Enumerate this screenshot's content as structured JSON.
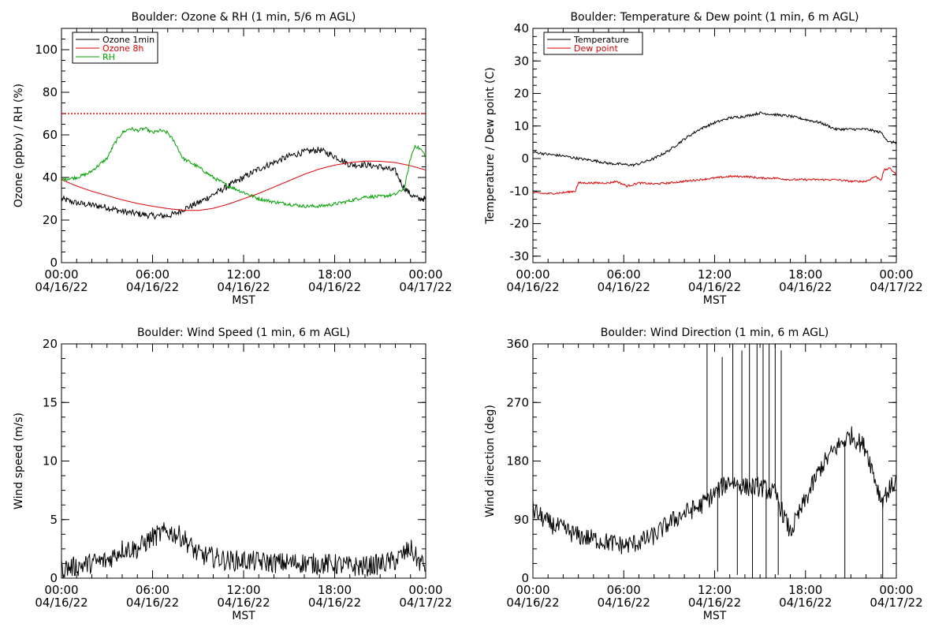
{
  "chart_data": [
    {
      "type": "line",
      "title": "Boulder: Ozone & RH (1 min, 5/6 m AGL)",
      "ylabel": "Ozone (ppbv) / RH (%)",
      "xlabel": "MST",
      "xlim": [
        "04/16/22 00:00",
        "04/17/22 00:00"
      ],
      "ylim": [
        0,
        110
      ],
      "yticks": [
        0,
        20,
        40,
        60,
        80,
        100
      ],
      "xtick_labels": [
        [
          "00:00",
          "04/16/22"
        ],
        [
          "06:00",
          "04/16/22"
        ],
        [
          "12:00",
          "04/16/22"
        ],
        [
          "18:00",
          "04/16/22"
        ],
        [
          "00:00",
          "04/17/22"
        ]
      ],
      "reference_line": {
        "y": 70,
        "style": "dotted",
        "color": "#dd0000"
      },
      "legend": {
        "position": "top-left"
      },
      "series": [
        {
          "name": "Ozone 1min",
          "color": "#000000",
          "noise": 1.5,
          "points": [
            [
              0,
              30
            ],
            [
              1,
              28
            ],
            [
              2,
              27
            ],
            [
              3,
              26
            ],
            [
              4,
              24
            ],
            [
              5,
              23
            ],
            [
              6,
              22
            ],
            [
              7,
              22
            ],
            [
              7.5,
              23
            ],
            [
              8,
              25
            ],
            [
              9,
              28
            ],
            [
              10,
              32
            ],
            [
              11,
              36
            ],
            [
              12,
              40
            ],
            [
              13,
              44
            ],
            [
              14,
              47
            ],
            [
              15,
              50
            ],
            [
              16,
              52
            ],
            [
              17,
              53
            ],
            [
              18,
              50
            ],
            [
              19,
              46
            ],
            [
              20,
              46
            ],
            [
              21,
              45
            ],
            [
              22,
              43
            ],
            [
              22.5,
              36
            ],
            [
              23,
              32
            ],
            [
              23.5,
              30
            ],
            [
              24,
              30
            ]
          ]
        },
        {
          "name": "Ozone 8h",
          "color": "#dd0000",
          "noise": 0,
          "points": [
            [
              0,
              39
            ],
            [
              1,
              36
            ],
            [
              2,
              33.5
            ],
            [
              3,
              31.5
            ],
            [
              4,
              29.5
            ],
            [
              5,
              27.8
            ],
            [
              6,
              26.5
            ],
            [
              7,
              25.4
            ],
            [
              8,
              24.6
            ],
            [
              9,
              24.5
            ],
            [
              10,
              25.5
            ],
            [
              11,
              27.5
            ],
            [
              12,
              30
            ],
            [
              13,
              32.5
            ],
            [
              14,
              35.5
            ],
            [
              15,
              38.5
            ],
            [
              16,
              41.5
            ],
            [
              17,
              44
            ],
            [
              18,
              45.8
            ],
            [
              19,
              47
            ],
            [
              20,
              47.7
            ],
            [
              21,
              47.6
            ],
            [
              22,
              47
            ],
            [
              23,
              45.5
            ],
            [
              24,
              43.5
            ]
          ]
        },
        {
          "name": "RH",
          "color": "#00a000",
          "noise": 0.8,
          "points": [
            [
              0,
              39
            ],
            [
              1,
              40
            ],
            [
              1.8,
              42
            ],
            [
              2.5,
              46
            ],
            [
              3,
              49
            ],
            [
              3.5,
              56
            ],
            [
              4,
              61
            ],
            [
              4.5,
              63
            ],
            [
              5,
              62
            ],
            [
              5.5,
              63
            ],
            [
              6,
              61
            ],
            [
              6.5,
              62
            ],
            [
              7,
              61
            ],
            [
              7.5,
              56
            ],
            [
              8,
              49
            ],
            [
              9,
              45
            ],
            [
              10,
              40
            ],
            [
              11,
              36
            ],
            [
              12,
              33
            ],
            [
              13,
              30
            ],
            [
              14,
              28.5
            ],
            [
              15,
              27.5
            ],
            [
              16,
              26.5
            ],
            [
              17,
              26.5
            ],
            [
              18,
              27.5
            ],
            [
              19,
              29
            ],
            [
              20,
              31
            ],
            [
              21,
              31
            ],
            [
              22,
              32
            ],
            [
              22.6,
              35
            ],
            [
              23,
              49
            ],
            [
              23.3,
              55
            ],
            [
              23.7,
              53
            ],
            [
              24,
              50
            ]
          ]
        }
      ]
    },
    {
      "type": "line",
      "title": "Boulder: Temperature & Dew point (1 min, 6 m AGL)",
      "ylabel": "Temperature / Dew point (C)",
      "xlabel": "MST",
      "xlim": [
        "04/16/22 00:00",
        "04/17/22 00:00"
      ],
      "ylim": [
        -32,
        40
      ],
      "yticks": [
        -30,
        -20,
        -10,
        0,
        10,
        20,
        30,
        40
      ],
      "xtick_labels": [
        [
          "00:00",
          "04/16/22"
        ],
        [
          "06:00",
          "04/16/22"
        ],
        [
          "12:00",
          "04/16/22"
        ],
        [
          "18:00",
          "04/16/22"
        ],
        [
          "00:00",
          "04/17/22"
        ]
      ],
      "legend": {
        "position": "top-left"
      },
      "series": [
        {
          "name": "Temperature",
          "color": "#000000",
          "noise": 0.4,
          "points": [
            [
              0,
              2
            ],
            [
              1,
              1.3
            ],
            [
              2,
              0.8
            ],
            [
              3,
              0
            ],
            [
              4,
              -0.6
            ],
            [
              5,
              -1.5
            ],
            [
              6,
              -1.8
            ],
            [
              6.6,
              -2
            ],
            [
              7,
              -1.6
            ],
            [
              8,
              0
            ],
            [
              9,
              2.5
            ],
            [
              10,
              6
            ],
            [
              11,
              9
            ],
            [
              12,
              11
            ],
            [
              13,
              12.5
            ],
            [
              14,
              13
            ],
            [
              15,
              14
            ],
            [
              16,
              13.5
            ],
            [
              17,
              13
            ],
            [
              18,
              12
            ],
            [
              19,
              11
            ],
            [
              20,
              9
            ],
            [
              21,
              9
            ],
            [
              22,
              9
            ],
            [
              23,
              8
            ],
            [
              23.5,
              5
            ],
            [
              24,
              5
            ]
          ]
        },
        {
          "name": "Dew point",
          "color": "#dd0000",
          "noise": 0.3,
          "points": [
            [
              0,
              -10.5
            ],
            [
              1,
              -10.8
            ],
            [
              2,
              -10.5
            ],
            [
              2.8,
              -10
            ],
            [
              3,
              -7.5
            ],
            [
              4,
              -7.5
            ],
            [
              5,
              -7.5
            ],
            [
              5.5,
              -7
            ],
            [
              6,
              -8
            ],
            [
              6.2,
              -8.5
            ],
            [
              7,
              -7.5
            ],
            [
              8,
              -7.8
            ],
            [
              9,
              -7.5
            ],
            [
              10,
              -7
            ],
            [
              11,
              -6.5
            ],
            [
              12,
              -6
            ],
            [
              13,
              -5.5
            ],
            [
              14,
              -5.5
            ],
            [
              15,
              -6
            ],
            [
              16,
              -6
            ],
            [
              17,
              -6.5
            ],
            [
              18,
              -6.5
            ],
            [
              19,
              -6.5
            ],
            [
              20,
              -6.5
            ],
            [
              21,
              -7
            ],
            [
              22,
              -7
            ],
            [
              22.6,
              -5.5
            ],
            [
              23,
              -6.5
            ],
            [
              23.2,
              -3.5
            ],
            [
              23.6,
              -3
            ],
            [
              24,
              -5
            ]
          ]
        }
      ]
    },
    {
      "type": "line",
      "title": "Boulder: Wind Speed (1 min, 6 m AGL)",
      "ylabel": "Wind speed (m/s)",
      "xlabel": "MST",
      "xlim": [
        "04/16/22 00:00",
        "04/17/22 00:00"
      ],
      "ylim": [
        0,
        20
      ],
      "yticks": [
        0,
        5,
        10,
        15,
        20
      ],
      "xtick_labels": [
        [
          "00:00",
          "04/16/22"
        ],
        [
          "06:00",
          "04/16/22"
        ],
        [
          "12:00",
          "04/16/22"
        ],
        [
          "18:00",
          "04/16/22"
        ],
        [
          "00:00",
          "04/17/22"
        ]
      ],
      "series": [
        {
          "color": "#000000",
          "noise": 0.9,
          "points": [
            [
              0,
              0.8
            ],
            [
              1,
              1
            ],
            [
              2,
              1.3
            ],
            [
              3,
              1.5
            ],
            [
              4,
              2.5
            ],
            [
              5,
              2.5
            ],
            [
              6,
              3.5
            ],
            [
              7,
              4
            ],
            [
              8,
              3.5
            ],
            [
              9,
              2
            ],
            [
              10,
              1.8
            ],
            [
              11,
              1.5
            ],
            [
              12,
              1.5
            ],
            [
              13,
              1.4
            ],
            [
              14,
              1.3
            ],
            [
              15,
              1.3
            ],
            [
              16,
              1.3
            ],
            [
              17,
              1.2
            ],
            [
              18,
              1.2
            ],
            [
              19,
              1
            ],
            [
              20,
              1
            ],
            [
              21,
              1.2
            ],
            [
              22,
              1.5
            ],
            [
              23,
              2.5
            ],
            [
              23.5,
              1.5
            ],
            [
              24,
              1
            ]
          ]
        }
      ]
    },
    {
      "type": "line",
      "title": "Boulder: Wind Direction (1 min, 6 m AGL)",
      "ylabel": "Wind direction (deg)",
      "xlabel": "MST",
      "xlim": [
        "04/16/22 00:00",
        "04/17/22 00:00"
      ],
      "ylim": [
        0,
        360
      ],
      "yticks": [
        0,
        90,
        180,
        270,
        360
      ],
      "xtick_labels": [
        [
          "00:00",
          "04/16/22"
        ],
        [
          "06:00",
          "04/16/22"
        ],
        [
          "12:00",
          "04/16/22"
        ],
        [
          "18:00",
          "04/16/22"
        ],
        [
          "00:00",
          "04/17/22"
        ]
      ],
      "series": [
        {
          "color": "#000000",
          "noise": 15,
          "points": [
            [
              0,
              105
            ],
            [
              1,
              85
            ],
            [
              2,
              75
            ],
            [
              3,
              65
            ],
            [
              4,
              60
            ],
            [
              5,
              55
            ],
            [
              6,
              50
            ],
            [
              7,
              55
            ],
            [
              8,
              65
            ],
            [
              9,
              85
            ],
            [
              10,
              100
            ],
            [
              11,
              110
            ],
            [
              12,
              130
            ],
            [
              13,
              150
            ],
            [
              14,
              140
            ],
            [
              15,
              140
            ],
            [
              16,
              130
            ],
            [
              17,
              70
            ],
            [
              18,
              120
            ],
            [
              19,
              170
            ],
            [
              20,
              200
            ],
            [
              21,
              220
            ],
            [
              22,
              200
            ],
            [
              23,
              120
            ],
            [
              24,
              150
            ]
          ]
        }
      ],
      "spikes": [
        [
          11.5,
          360
        ],
        [
          12.5,
          340
        ],
        [
          13.2,
          360
        ],
        [
          13.8,
          350
        ],
        [
          14.3,
          360
        ],
        [
          14.8,
          360
        ],
        [
          15.2,
          360
        ],
        [
          15.6,
          360
        ],
        [
          16,
          360
        ],
        [
          16.4,
          350
        ],
        [
          12.2,
          10
        ],
        [
          13.5,
          5
        ],
        [
          14.5,
          0
        ],
        [
          15.4,
          0
        ],
        [
          16.2,
          5
        ],
        [
          20.6,
          0
        ],
        [
          23.1,
          0
        ]
      ]
    }
  ]
}
